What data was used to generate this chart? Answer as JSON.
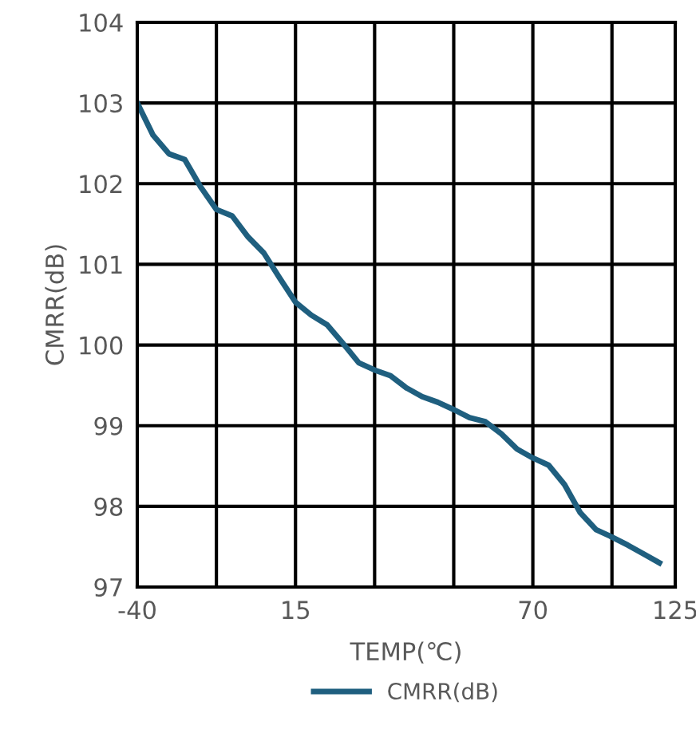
{
  "chart_data": {
    "type": "line",
    "xlabel": "TEMP(℃)",
    "ylabel": "CMRR(dB)",
    "categories": [
      "-40",
      null,
      null,
      null,
      null,
      null,
      null,
      null,
      null,
      null,
      "15",
      null,
      null,
      null,
      null,
      null,
      null,
      null,
      null,
      null,
      null,
      null,
      null,
      null,
      null,
      "70",
      null,
      null,
      null,
      null,
      null,
      null,
      null,
      null,
      "125"
    ],
    "ylim": [
      97,
      104
    ],
    "yticks": [
      97,
      98,
      99,
      100,
      101,
      102,
      103,
      104
    ],
    "grid": true,
    "legend": "bottom",
    "marker": "none",
    "line_style": "solid",
    "series": [
      {
        "name": "CMRR(dB)",
        "color": "#1f5f7f",
        "values": [
          103.0,
          102.6,
          102.37,
          102.3,
          101.96,
          101.68,
          101.6,
          101.34,
          101.14,
          100.83,
          100.53,
          100.37,
          100.25,
          100.02,
          99.78,
          99.69,
          99.62,
          99.47,
          99.36,
          99.29,
          99.2,
          99.1,
          99.05,
          98.9,
          98.71,
          98.6,
          98.51,
          98.27,
          97.92,
          97.71,
          97.62,
          97.52,
          97.41,
          97.3,
          null
        ]
      }
    ]
  }
}
